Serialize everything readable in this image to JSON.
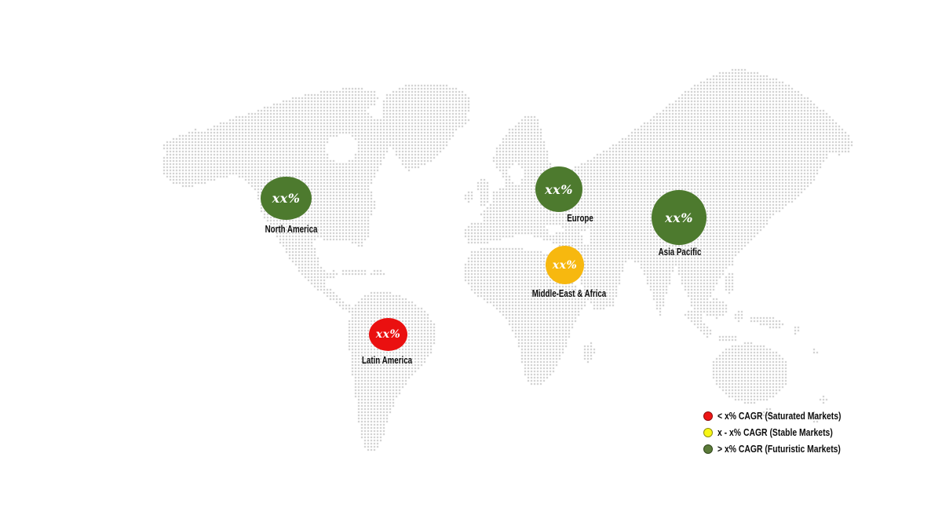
{
  "chart_data": {
    "type": "map",
    "description": "Dotted world map with regional market CAGR bubbles",
    "regions": [
      {
        "name": "North America",
        "value": "xx%",
        "category": "Futuristic Markets",
        "color": "#4d7a2e"
      },
      {
        "name": "Europe",
        "value": "xx%",
        "category": "Futuristic Markets",
        "color": "#4d7a2e"
      },
      {
        "name": "Asia Pacific",
        "value": "xx%",
        "category": "Futuristic Markets",
        "color": "#4d7a2e"
      },
      {
        "name": "Middle-East & Africa",
        "value": "xx%",
        "category": "Stable Markets",
        "color": "#f7b80f"
      },
      {
        "name": "Latin America",
        "value": "xx%",
        "category": "Saturated Markets",
        "color": "#ea1010"
      }
    ],
    "legend": [
      {
        "label": "< x% CAGR (Saturated Markets)",
        "color": "#ee1515",
        "border": "#8f0d0d"
      },
      {
        "label": "x - x% CAGR (Stable Markets)",
        "color": "#f8f715",
        "border": "#8e8e12"
      },
      {
        "label": "> x% CAGR (Futuristic Markets)",
        "color": "#5b7b39",
        "border": "#31471c"
      }
    ],
    "map_dot_color": "#c6c6c6",
    "background": "#ffffff"
  }
}
